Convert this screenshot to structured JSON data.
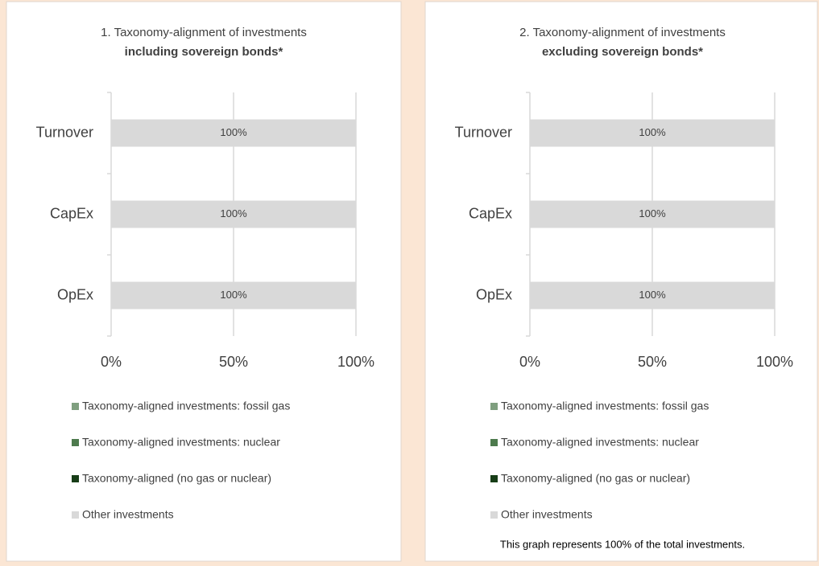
{
  "chart_data": [
    {
      "type": "bar",
      "orientation": "horizontal",
      "stacked": true,
      "title": "1. Taxonomy-alignment of investments",
      "subtitle": "including sovereign bonds*",
      "categories": [
        "Turnover",
        "CapEx",
        "OpEx"
      ],
      "series": [
        {
          "name": "Taxonomy-aligned investments: fossil gas",
          "color": "#7f9f7f",
          "values": [
            0,
            0,
            0
          ]
        },
        {
          "name": "Taxonomy-aligned investments: nuclear",
          "color": "#4d7a4d",
          "values": [
            0,
            0,
            0
          ]
        },
        {
          "name": "Taxonomy-aligned (no gas or nuclear)",
          "color": "#173d17",
          "values": [
            0,
            0,
            0
          ]
        },
        {
          "name": "Other investments",
          "color": "#d9d9d9",
          "values": [
            100,
            100,
            100
          ],
          "value_labels": [
            "100%",
            "100%",
            "100%"
          ]
        }
      ],
      "xlim": [
        0,
        100
      ],
      "xticks": [
        {
          "value": 0,
          "label": "0%"
        },
        {
          "value": 50,
          "label": "50%"
        },
        {
          "value": 100,
          "label": "100%"
        }
      ],
      "grid": true,
      "legend": "bottom"
    },
    {
      "type": "bar",
      "orientation": "horizontal",
      "stacked": true,
      "title": "2. Taxonomy-alignment of investments",
      "subtitle": "excluding sovereign bonds*",
      "categories": [
        "Turnover",
        "CapEx",
        "OpEx"
      ],
      "series": [
        {
          "name": "Taxonomy-aligned investments: fossil gas",
          "color": "#7f9f7f",
          "values": [
            0,
            0,
            0
          ]
        },
        {
          "name": "Taxonomy-aligned investments: nuclear",
          "color": "#4d7a4d",
          "values": [
            0,
            0,
            0
          ]
        },
        {
          "name": "Taxonomy-aligned (no gas or nuclear)",
          "color": "#173d17",
          "values": [
            0,
            0,
            0
          ]
        },
        {
          "name": "Other investments",
          "color": "#d9d9d9",
          "values": [
            100,
            100,
            100
          ],
          "value_labels": [
            "100%",
            "100%",
            "100%"
          ]
        }
      ],
      "xlim": [
        0,
        100
      ],
      "xticks": [
        {
          "value": 0,
          "label": "0%"
        },
        {
          "value": 50,
          "label": "50%"
        },
        {
          "value": 100,
          "label": "100%"
        }
      ],
      "grid": true,
      "legend": "bottom",
      "note": "This graph represents 100% of the total investments."
    }
  ]
}
